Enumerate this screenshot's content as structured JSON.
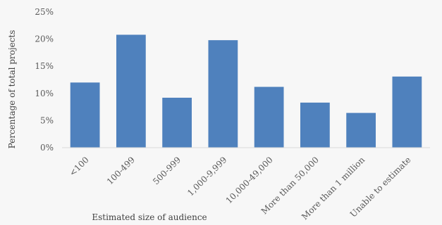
{
  "chart_data": {
    "type": "bar",
    "title": "",
    "xlabel": "Estimated size of audience",
    "ylabel": "Percentage of total projects",
    "categories": [
      "<100",
      "100-499",
      "500-999",
      "1,000-9,999",
      "10,000-49,000",
      "More than 50,000",
      "More than 1 million",
      "Unable to estimate"
    ],
    "values": [
      12,
      20.8,
      9.2,
      19.8,
      11.2,
      8.3,
      6.4,
      13.1
    ],
    "ylim": [
      0,
      25
    ],
    "yticks": [
      0,
      5,
      10,
      15,
      20,
      25
    ],
    "ytick_labels": [
      "0%",
      "5%",
      "10%",
      "15%",
      "20%",
      "25%"
    ],
    "grid": false,
    "legend": "none",
    "bar_color": "#4f81bd"
  }
}
